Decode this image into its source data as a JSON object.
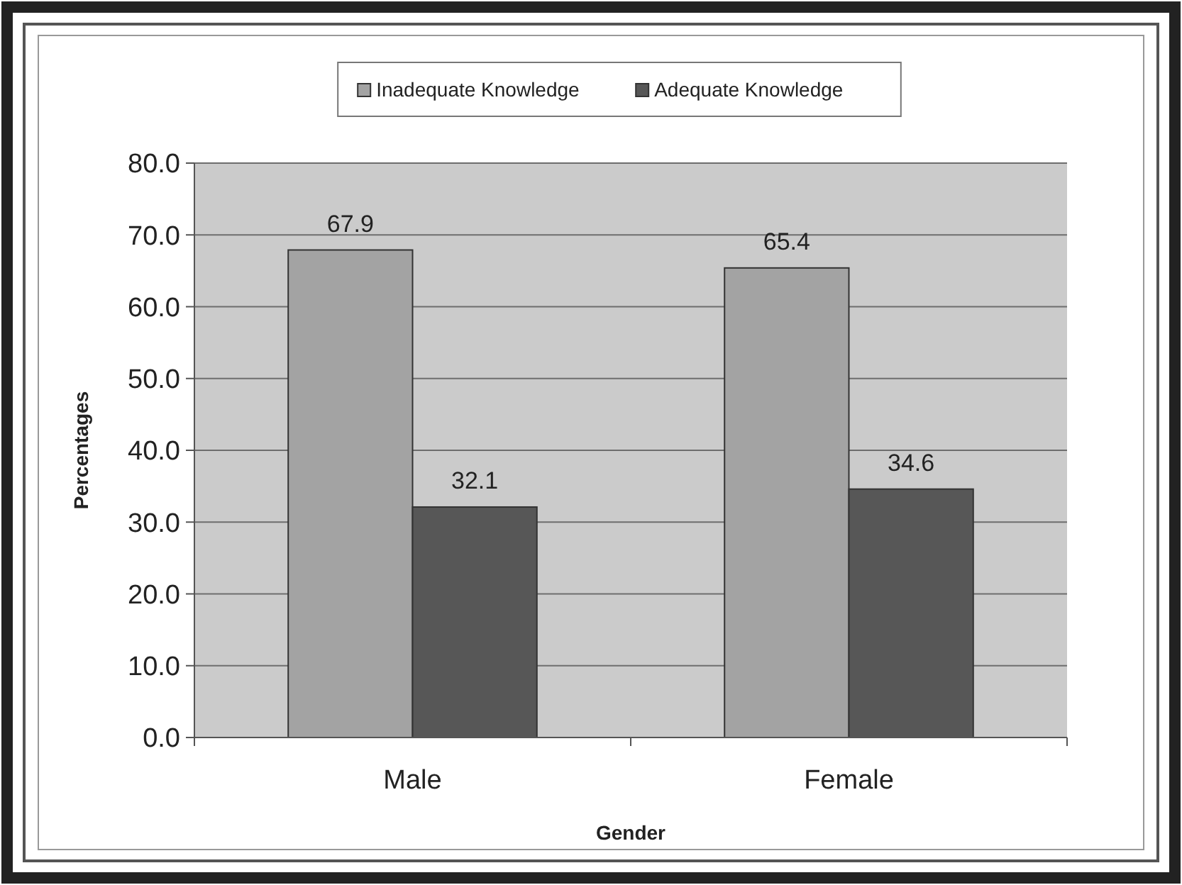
{
  "chart_data": {
    "type": "bar",
    "xlabel": "Gender",
    "ylabel": "Percentages",
    "categories": [
      "Male",
      "Female"
    ],
    "series": [
      {
        "name": "Inadequate Knowledge",
        "color": "#a3a3a3",
        "values": [
          67.9,
          65.4
        ]
      },
      {
        "name": "Adequate Knowledge",
        "color": "#575757",
        "values": [
          32.1,
          34.6
        ]
      }
    ],
    "ylim": [
      0,
      80
    ],
    "yticks": [
      {
        "value": 0,
        "label": "0.0"
      },
      {
        "value": 10,
        "label": "10.0"
      },
      {
        "value": 20,
        "label": "20.0"
      },
      {
        "value": 30,
        "label": "30.0"
      },
      {
        "value": 40,
        "label": "40.0"
      },
      {
        "value": 50,
        "label": "50.0"
      },
      {
        "value": 60,
        "label": "60.0"
      },
      {
        "value": 70,
        "label": "70.0"
      },
      {
        "value": 80,
        "label": "80.0"
      }
    ],
    "grid": "y",
    "legend": "top",
    "data_labels": true
  }
}
